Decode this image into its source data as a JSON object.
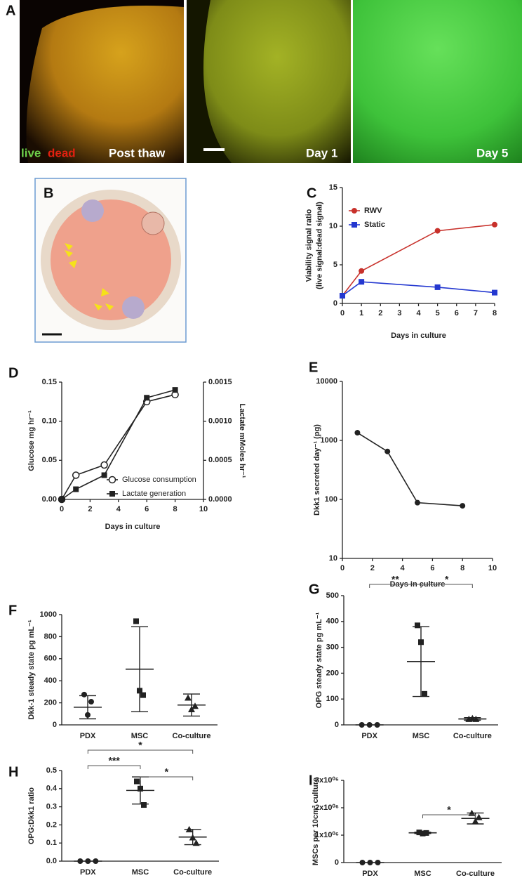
{
  "images": [
    {
      "panel": "A",
      "labels": [
        "live",
        "dead",
        "Post thaw",
        "Day 1",
        "Day 5"
      ]
    },
    {
      "panel": "B"
    }
  ],
  "chart_data": [
    {
      "type": "line",
      "panel": "C",
      "xlabel": "Days in culture",
      "ylabel": [
        "Viability signal ratio",
        "(live signal:dead signal)"
      ],
      "x": [
        0,
        1,
        5,
        8
      ],
      "xlim": [
        0,
        8
      ],
      "xticks": [
        0,
        1,
        2,
        3,
        4,
        5,
        6,
        7,
        8
      ],
      "ylim": [
        0,
        15
      ],
      "yticks": [
        0,
        5,
        10,
        15
      ],
      "legend": "upper left",
      "series": [
        {
          "name": "RWV",
          "color": "#c8312b",
          "marker": "circle",
          "values": [
            1,
            4.2,
            9.4,
            10.2
          ]
        },
        {
          "name": "Static",
          "color": "#2438d0",
          "marker": "square",
          "values": [
            1,
            2.8,
            2.1,
            1.4
          ]
        }
      ]
    },
    {
      "type": "line",
      "panel": "D",
      "xlabel": "Days in culture",
      "ylabel": "Glucose mg hr⁻¹",
      "y2label": "Lactate mMoles hr⁻¹",
      "x": [
        0,
        1,
        3,
        6,
        8
      ],
      "xlim": [
        0,
        10
      ],
      "xticks": [
        0,
        2,
        4,
        6,
        8,
        10
      ],
      "ylim": [
        0,
        0.15
      ],
      "yticks": [
        {
          "value": 0,
          "label": "0.00"
        },
        0.05,
        {
          "value": 0.1,
          "label": "0.10"
        },
        0.15
      ],
      "y2lim": [
        0,
        0.0015
      ],
      "y2ticks": [
        {
          "value": 0,
          "label": "0.0000"
        },
        0.0005,
        {
          "value": 0.001,
          "label": "0.0010"
        },
        0.0015
      ],
      "legend": "lower right",
      "series": [
        {
          "name": "Glucose consumption",
          "color": "#222222",
          "marker": "open-circle",
          "values": [
            0,
            0.031,
            0.044,
            0.125,
            0.134
          ]
        },
        {
          "name": "Lactate generation",
          "color": "#222222",
          "marker": "square",
          "axis": "y2",
          "values": [
            0,
            0.00013,
            0.00031,
            0.0013,
            0.0014
          ]
        }
      ]
    },
    {
      "type": "line",
      "panel": "E",
      "xlabel": "Days in culture",
      "ylabel": "Dkk1 secreted day⁻¹ (pg)",
      "log": true,
      "x": [
        1,
        3,
        5,
        8
      ],
      "xlim": [
        0,
        10
      ],
      "xticks": [
        0,
        2,
        4,
        6,
        8,
        10
      ],
      "ylim": [
        10,
        10000
      ],
      "yticks": [
        10,
        100,
        1000,
        10000
      ],
      "series": [
        {
          "color": "#222222",
          "marker": "circle",
          "values": [
            1350,
            650,
            88,
            78
          ]
        }
      ]
    },
    {
      "type": "dot",
      "panel": "F",
      "ylabel": "Dkk-1 steady state pg mL⁻¹",
      "categories": [
        "PDX",
        "MSC",
        "Co-culture"
      ],
      "markers": [
        "circle",
        "square",
        "triangle"
      ],
      "ylim": [
        0,
        1000
      ],
      "yticks": [
        0,
        200,
        400,
        600,
        800,
        1000
      ],
      "points": [
        [
          275,
          90,
          210
        ],
        [
          940,
          310,
          270
        ],
        [
          245,
          140,
          170
        ]
      ],
      "means": [
        160,
        505,
        180
      ],
      "errors": [
        105,
        385,
        100
      ],
      "significance": []
    },
    {
      "type": "dot",
      "panel": "G",
      "ylabel": "OPG steady state pg mL⁻¹",
      "categories": [
        "PDX",
        "MSC",
        "Co-culture"
      ],
      "markers": [
        "circle",
        "square",
        "triangle"
      ],
      "ylim": [
        0,
        500
      ],
      "yticks": [
        0,
        100,
        200,
        300,
        400,
        500
      ],
      "points": [
        [
          0,
          0,
          0
        ],
        [
          385,
          320,
          120
        ],
        [
          22,
          25,
          22
        ]
      ],
      "means": [
        0,
        245,
        23
      ],
      "errors": [
        0,
        135,
        5
      ],
      "significance": [
        {
          "between": [
            "PDX",
            "MSC"
          ],
          "label": "**"
        },
        {
          "between": [
            "MSC",
            "Co-culture"
          ],
          "label": "*"
        }
      ]
    },
    {
      "type": "dot",
      "panel": "H",
      "ylabel": "OPG:Dkk1 ratio",
      "categories": [
        "PDX",
        "MSC",
        "Co-culture"
      ],
      "markers": [
        "circle",
        "square",
        "triangle"
      ],
      "ylim": [
        0,
        0.5
      ],
      "yticks": [
        {
          "value": 0,
          "label": "0.0"
        },
        0.1,
        0.2,
        0.3,
        0.4,
        0.5
      ],
      "points": [
        [
          0,
          0,
          0
        ],
        [
          0.44,
          0.4,
          0.31
        ],
        [
          0.175,
          0.13,
          0.1
        ]
      ],
      "means": [
        0,
        0.39,
        0.133
      ],
      "errors": [
        0,
        0.075,
        0.042
      ],
      "significance": [
        {
          "between": [
            "PDX",
            "Co-culture"
          ],
          "label": "*"
        },
        {
          "between": [
            "PDX",
            "MSC"
          ],
          "label": "***"
        },
        {
          "between": [
            "MSC",
            "Co-culture"
          ],
          "label": "*"
        }
      ]
    },
    {
      "type": "dot",
      "panel": "I",
      "ylabel": "MSCs per 10cm² culture",
      "categories": [
        "PDX",
        "MSC",
        "Co-culture"
      ],
      "markers": [
        "circle",
        "square",
        "triangle"
      ],
      "ylim": [
        0,
        3000000
      ],
      "yticks": [
        0,
        {
          "value": 1000000,
          "label": "1x10⁰⁶"
        },
        {
          "value": 2000000,
          "label": "2x10⁰⁶"
        },
        {
          "value": 3000000,
          "label": "3x10⁰⁶"
        }
      ],
      "points": [
        [
          0,
          0,
          0
        ],
        [
          1100000,
          1060000,
          1080000
        ],
        [
          1800000,
          1500000,
          1650000
        ]
      ],
      "means": [
        0,
        1085000,
        1610000
      ],
      "errors": [
        0,
        25000,
        200000
      ],
      "significance": [
        {
          "between": [
            "MSC",
            "Co-culture"
          ],
          "label": "*"
        }
      ]
    }
  ]
}
